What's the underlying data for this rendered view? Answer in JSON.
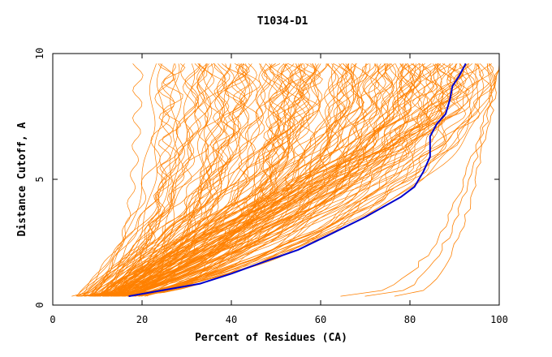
{
  "chart_data": {
    "type": "line",
    "title": "T1034-D1",
    "xlabel": "Percent of Residues (CA)",
    "ylabel": "Distance Cutoff, A",
    "xlim": [
      0,
      100
    ],
    "ylim": [
      0,
      10
    ],
    "x_ticks": [
      "0",
      "20",
      "40",
      "60",
      "80",
      "100"
    ],
    "y_ticks": [
      "0",
      "5",
      "10"
    ],
    "grid": false,
    "colors": {
      "models": "#ff8000",
      "highlight": "#0000cc"
    },
    "highlight_series": {
      "x": [
        17,
        25,
        33,
        40,
        47,
        55,
        62,
        70,
        78,
        81,
        83,
        84.5,
        84.5,
        86,
        88,
        89,
        89.5,
        91,
        92.5
      ],
      "y": [
        0.35,
        0.6,
        0.85,
        1.25,
        1.7,
        2.2,
        2.8,
        3.5,
        4.3,
        4.7,
        5.3,
        5.9,
        6.7,
        7.2,
        7.6,
        8.2,
        8.7,
        9.1,
        9.6
      ]
    }
  }
}
